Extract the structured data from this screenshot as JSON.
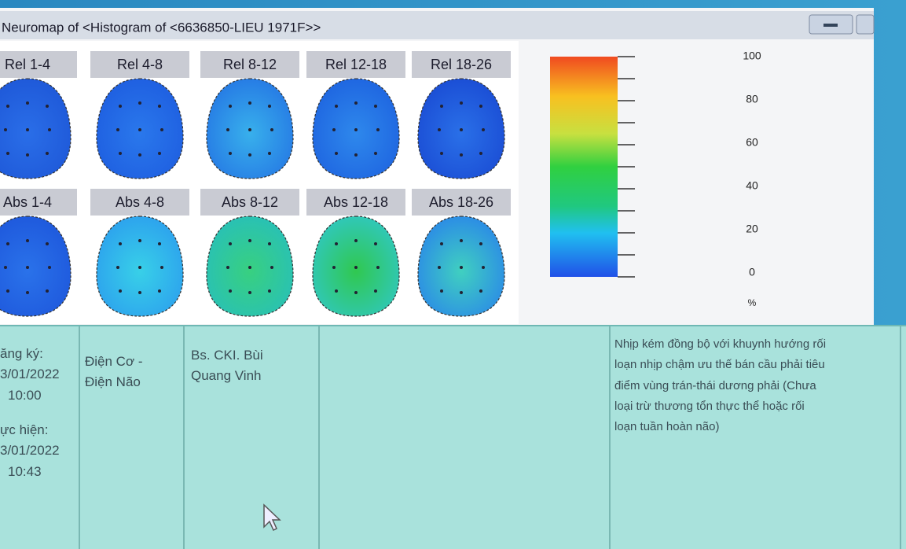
{
  "window": {
    "title": "Neuromap of <Histogram of <6636850-LIEU 1971F>>",
    "maps": [
      "Rel 1-4",
      "Rel 4-8",
      "Rel 8-12",
      "Rel 12-18",
      "Rel 18-26",
      "Abs 1-4",
      "Abs 4-8",
      "Abs 8-12",
      "Abs 12-18",
      "Abs 18-26"
    ]
  },
  "scale": {
    "labels": [
      100,
      80,
      60,
      40,
      20,
      0
    ],
    "unit": "%"
  },
  "table": {
    "time": [
      "ăng ký:",
      "3/01/2022",
      "10:00",
      "ực hiện:",
      "3/01/2022",
      "10:43"
    ],
    "department": [
      "Điện Cơ -",
      "Điện Não"
    ],
    "doctor": [
      "Bs. CKI. Bùi",
      "Quang Vinh"
    ],
    "conclusion": [
      "Nhịp kém đồng bộ với khuynh hướng rối",
      "loạn nhịp chậm ưu thế bán cầu phải tiêu",
      "điểm vùng trán-thái dương phải (Chưa",
      "loại trừ thương tổn thực thể hoặc rối",
      "loạn tuần hoàn não)"
    ]
  }
}
